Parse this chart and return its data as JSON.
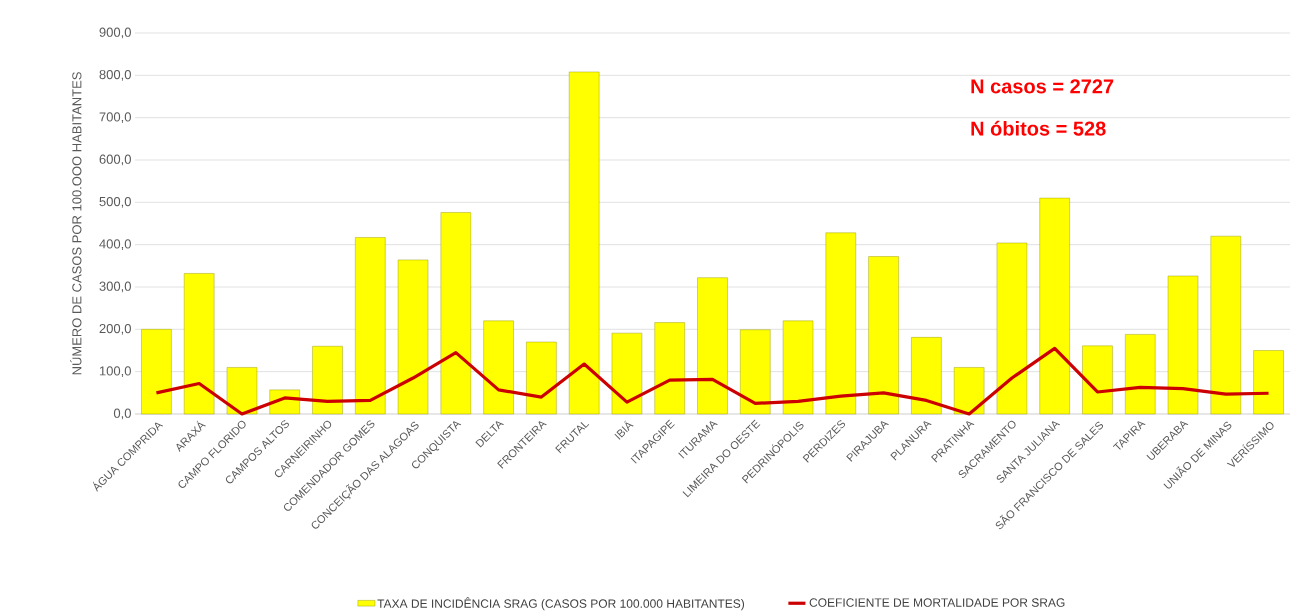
{
  "chart_data": {
    "type": "bar",
    "ylabel": "NÚMERO  DE CASOS POR 100.OOO HABITANTES",
    "annotations": [
      "N casos = 2727",
      "N óbitos = 528"
    ],
    "categories": [
      "ÁGUA COMPRIDA",
      "ARAXÁ",
      "CAMPO FLORIDO",
      "CAMPOS ALTOS",
      "CARNEIRINHO",
      "COMENDADOR GOMES",
      "CONCEIÇÃO DAS ALAGOAS",
      "CONQUISTA",
      "DELTA",
      "FRONTEIRA",
      "FRUTAL",
      "IBIÁ",
      "ITAPAGIPE",
      "ITURAMA",
      "LIMEIRA DO OESTE",
      "PEDRINÓPOLIS",
      "PERDIZES",
      "PIRAJUBA",
      "PLANURA",
      "PRATINHA",
      "SACRAMENTO",
      "SANTA JULIANA",
      "SÃO FRANCISCO DE SALES",
      "TAPIRA",
      "UBERABA",
      "UNIÃO DE MINAS",
      "VERÍSSIMO"
    ],
    "series": [
      {
        "name": "TAXA DE INCIDÊNCIA SRAG  (CASOS POR 100.000 HABITANTES)",
        "type": "bar",
        "color": "#ffff00",
        "values": [
          200,
          332,
          110,
          57,
          160,
          417,
          364,
          476,
          220,
          170,
          808,
          191,
          216,
          322,
          199,
          220,
          428,
          372,
          181,
          110,
          404,
          510,
          161,
          188,
          326,
          420,
          150
        ]
      },
      {
        "name": "COEFICIENTE DE MORTALIDADE POR SRAG",
        "type": "line",
        "color": "#cc0000",
        "values": [
          50,
          72,
          0,
          38,
          30,
          32,
          85,
          145,
          57,
          40,
          118,
          28,
          80,
          82,
          25,
          30,
          42,
          50,
          32,
          0,
          85,
          155,
          52,
          63,
          60,
          47,
          49
        ]
      }
    ],
    "ylim": [
      0,
      900
    ],
    "yticks": [
      {
        "value": 0,
        "label": "0,0"
      },
      {
        "value": 100,
        "label": "100,0"
      },
      {
        "value": 200,
        "label": "200,0"
      },
      {
        "value": 300,
        "label": "300,0"
      },
      {
        "value": 400,
        "label": "400,0"
      },
      {
        "value": 500,
        "label": "500,0"
      },
      {
        "value": 600,
        "label": "600,0"
      },
      {
        "value": 700,
        "label": "700,0"
      },
      {
        "value": 800,
        "label": "800,0"
      },
      {
        "value": 900,
        "label": "900,0"
      }
    ],
    "grid": "y",
    "legend": "bottom"
  }
}
